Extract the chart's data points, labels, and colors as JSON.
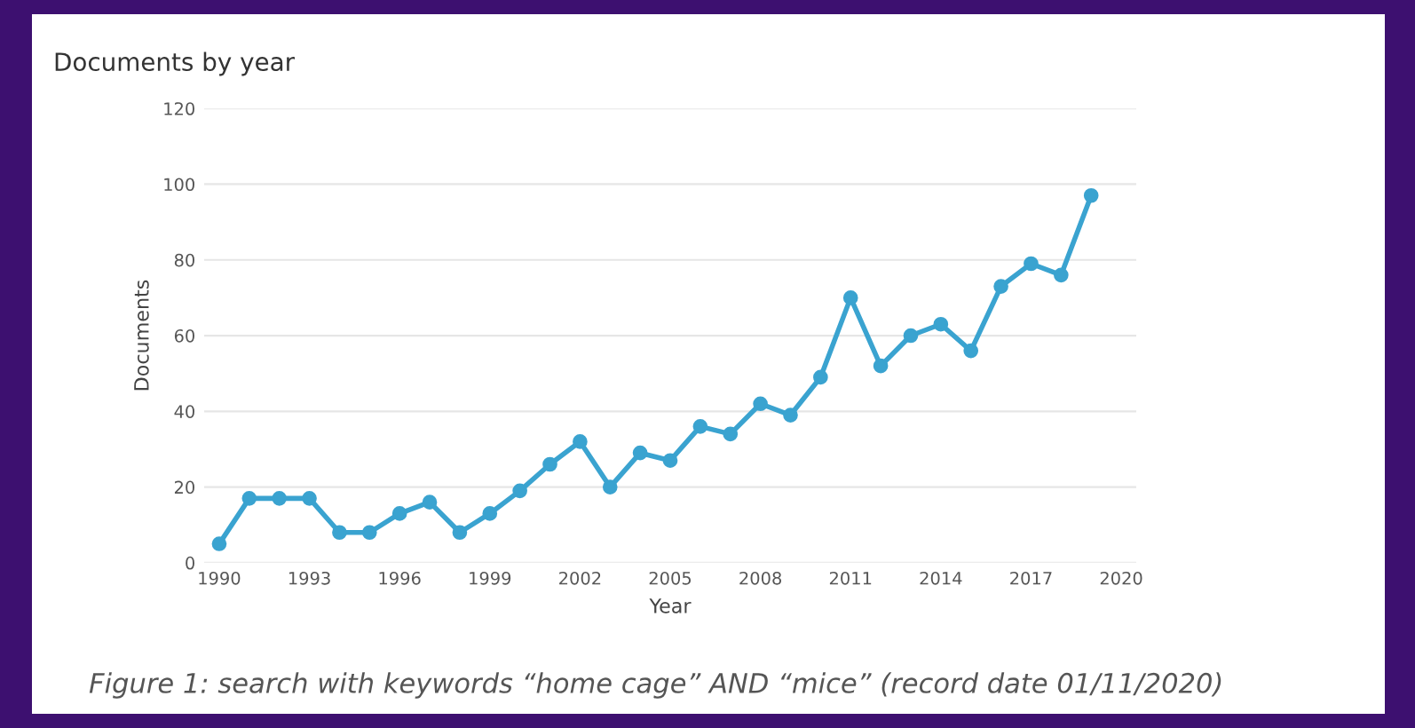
{
  "chart_data": {
    "type": "line",
    "title": "Documents by year",
    "xlabel": "Year",
    "ylabel": "Documents",
    "x": [
      1990,
      1991,
      1992,
      1993,
      1994,
      1995,
      1996,
      1997,
      1998,
      1999,
      2000,
      2001,
      2002,
      2003,
      2004,
      2005,
      2006,
      2007,
      2008,
      2009,
      2010,
      2011,
      2012,
      2013,
      2014,
      2015,
      2016,
      2017,
      2018,
      2019
    ],
    "series": [
      {
        "color": "#3aa3d0",
        "values": [
          5,
          17,
          17,
          17,
          8,
          8,
          13,
          16,
          8,
          13,
          19,
          26,
          32,
          20,
          29,
          27,
          36,
          34,
          42,
          39,
          49,
          70,
          52,
          60,
          63,
          56,
          73,
          79,
          76,
          97
        ]
      }
    ],
    "xlim": [
      1989.5,
      2020.5
    ],
    "xticks": [
      1990,
      1993,
      1996,
      1999,
      2002,
      2005,
      2008,
      2011,
      2014,
      2017,
      2020
    ],
    "ylim": [
      0,
      120
    ],
    "yticks": [
      0,
      20,
      40,
      60,
      80,
      100,
      120
    ],
    "grid": "y",
    "marker": "circle",
    "line_style": "solid",
    "legend": false,
    "annotations": [
      "Figure 1: search with keywords “home cage” AND “mice” (record date 01/11/2020)"
    ]
  }
}
